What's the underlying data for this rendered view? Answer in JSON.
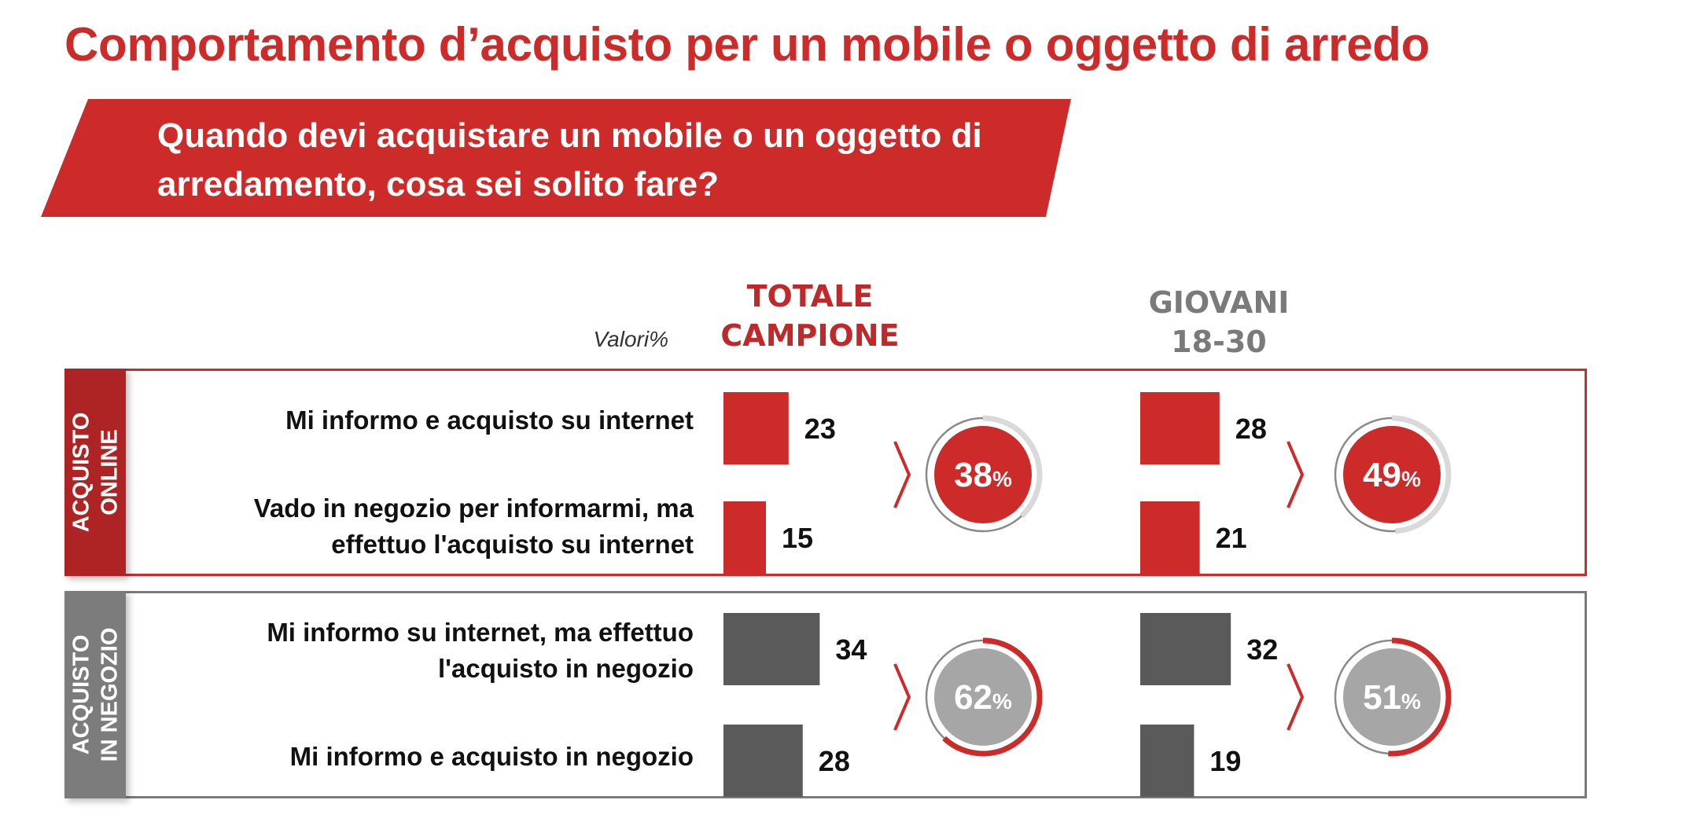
{
  "title": "Comportamento d’acquisto per un mobile o oggetto di arredo",
  "question": "Quando devi acquistare un mobile o un oggetto di arredamento, cosa sei solito fare?",
  "valori_label": "Valori%",
  "colors": {
    "accent_red": "#cc2b2a",
    "dark_red": "#ae2424",
    "bar_gray": "#5a5a5a",
    "circle_gray": "#a6a6a6",
    "ring_light": "#d9d9d9"
  },
  "chart_data": {
    "type": "bar",
    "orientation": "horizontal",
    "title": "Quando devi acquistare un mobile o un oggetto di arredamento, cosa sei solito fare?",
    "unit": "%",
    "groups": [
      {
        "name": "ACQUISTO ONLINE",
        "label_lines": [
          "ACQUISTO",
          "ONLINE"
        ]
      },
      {
        "name": "ACQUISTO IN NEGOZIO",
        "label_lines": [
          "ACQUISTO",
          "IN NEGOZIO"
        ]
      }
    ],
    "categories": [
      {
        "label": "Mi informo e acquisto su internet",
        "group": 0
      },
      {
        "label": "Vado in negozio per informarmi, ma effettuo l'acquisto su internet",
        "group": 0
      },
      {
        "label": "Mi informo su internet, ma effettuo l'acquisto in negozio",
        "group": 1
      },
      {
        "label": "Mi informo e acquisto in negozio",
        "group": 1
      }
    ],
    "series": [
      {
        "name": "TOTALE CAMPIONE",
        "header_lines": [
          "TOTALE",
          "CAMPIONE"
        ],
        "values": [
          23,
          15,
          34,
          28
        ],
        "group_totals": [
          38,
          62
        ]
      },
      {
        "name": "GIOVANI 18-30",
        "header_lines": [
          "GIOVANI",
          "18-30"
        ],
        "values": [
          28,
          21,
          32,
          19
        ],
        "group_totals": [
          49,
          51
        ]
      }
    ]
  }
}
